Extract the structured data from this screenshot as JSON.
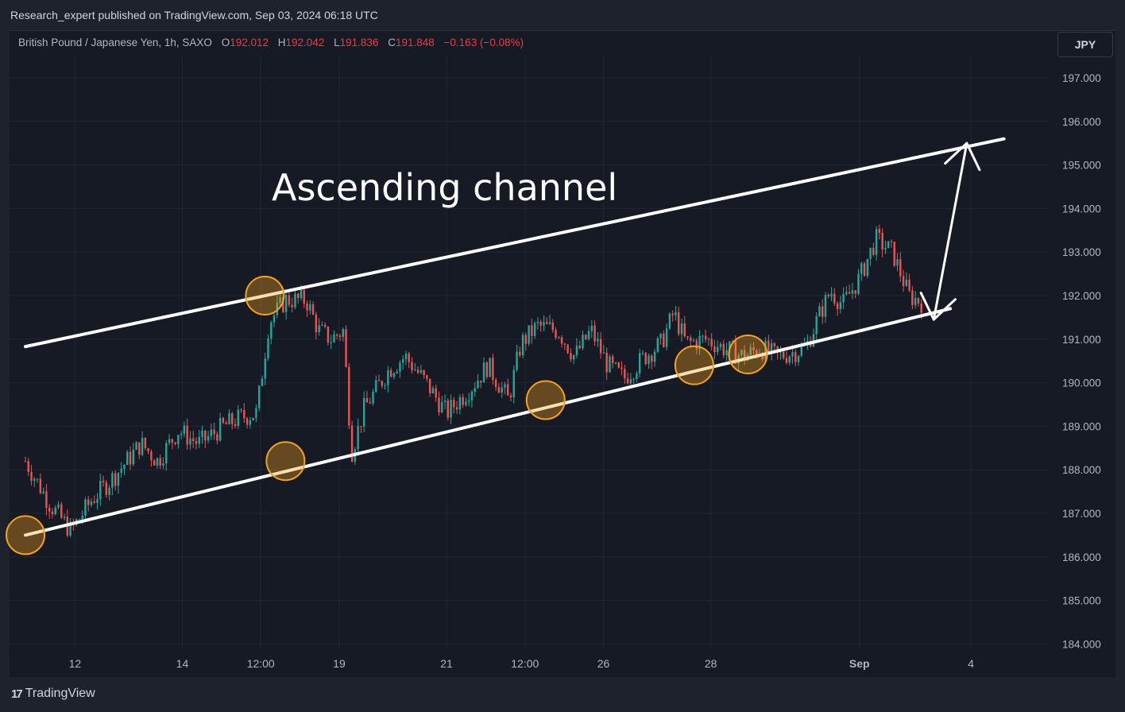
{
  "header": {
    "publish_line": "Research_expert published on TradingView.com, Sep 03, 2024 06:18 UTC"
  },
  "legend": {
    "symbol": "British Pound / Japanese Yen, 1h, SAXO",
    "open_label": "O",
    "open": "192.012",
    "high_label": "H",
    "high": "192.042",
    "low_label": "L",
    "low": "191.836",
    "close_label": "C",
    "close": "191.848",
    "change": "−0.163 (−0.08%)"
  },
  "currency_button": "JPY",
  "footer": {
    "brand": "TradingView",
    "brand_mark": "17"
  },
  "colors": {
    "up": "#26a69a",
    "down": "#ef5350",
    "annotation": "#ffffff",
    "touch_marker": "#f7a21b",
    "text": "#d1d4dc",
    "background": "#161a25"
  },
  "chart_data": {
    "type": "candlestick",
    "instrument": "British Pound / Japanese Yen",
    "timeframe": "1h",
    "source": "SAXO",
    "ylim": [
      183.8,
      197.6
    ],
    "y_ticks": [
      "197.000",
      "196.000",
      "195.000",
      "194.000",
      "193.000",
      "192.000",
      "191.000",
      "190.000",
      "189.000",
      "188.000",
      "187.000",
      "186.000",
      "185.000",
      "184.000"
    ],
    "x_ticks": [
      {
        "label": "12",
        "x": 0.6
      },
      {
        "label": "14",
        "x": 1.9
      },
      {
        "label": "12:00",
        "x": 2.85
      },
      {
        "label": "19",
        "x": 3.8
      },
      {
        "label": "21",
        "x": 5.1
      },
      {
        "label": "12:00",
        "x": 6.05
      },
      {
        "label": "26",
        "x": 7.0
      },
      {
        "label": "28",
        "x": 8.3
      },
      {
        "label": "Sep",
        "x": 10.1
      },
      {
        "label": "4",
        "x": 11.45
      }
    ],
    "x_range": [
      0,
      12.2
    ],
    "series": [
      {
        "name": "GBPJPY hourly close (approx.)",
        "points": [
          [
            0.0,
            188.2
          ],
          [
            0.3,
            187.2
          ],
          [
            0.55,
            186.6
          ],
          [
            0.8,
            187.3
          ],
          [
            1.1,
            187.9
          ],
          [
            1.4,
            188.6
          ],
          [
            1.6,
            188.2
          ],
          [
            1.85,
            188.9
          ],
          [
            2.1,
            188.6
          ],
          [
            2.4,
            189.0
          ],
          [
            2.6,
            189.2
          ],
          [
            2.8,
            189.3
          ],
          [
            2.95,
            191.4
          ],
          [
            3.15,
            191.9
          ],
          [
            3.4,
            191.9
          ],
          [
            3.55,
            191.2
          ],
          [
            3.7,
            191.0
          ],
          [
            3.85,
            191.2
          ],
          [
            3.95,
            188.4
          ],
          [
            4.1,
            189.4
          ],
          [
            4.4,
            190.3
          ],
          [
            4.6,
            190.6
          ],
          [
            4.85,
            190.0
          ],
          [
            5.1,
            189.3
          ],
          [
            5.4,
            189.9
          ],
          [
            5.6,
            190.4
          ],
          [
            5.85,
            189.6
          ],
          [
            6.0,
            190.9
          ],
          [
            6.2,
            191.3
          ],
          [
            6.45,
            191.2
          ],
          [
            6.65,
            190.6
          ],
          [
            6.85,
            191.2
          ],
          [
            7.05,
            190.4
          ],
          [
            7.25,
            190.1
          ],
          [
            7.5,
            190.6
          ],
          [
            7.7,
            190.9
          ],
          [
            7.85,
            191.6
          ],
          [
            8.0,
            190.9
          ],
          [
            8.25,
            191.0
          ],
          [
            8.45,
            190.8
          ],
          [
            8.7,
            190.6
          ],
          [
            8.9,
            190.8
          ],
          [
            9.1,
            190.6
          ],
          [
            9.3,
            190.7
          ],
          [
            9.45,
            190.8
          ],
          [
            9.6,
            191.5
          ],
          [
            9.75,
            192.1
          ],
          [
            9.9,
            191.8
          ],
          [
            10.1,
            192.4
          ],
          [
            10.3,
            193.3
          ],
          [
            10.5,
            193.0
          ],
          [
            10.7,
            192.0
          ],
          [
            10.85,
            191.85
          ]
        ]
      }
    ],
    "annotations": {
      "title": "Ascending channel",
      "channel_upper": [
        [
          0.0,
          190.83
        ],
        [
          11.85,
          195.6
        ]
      ],
      "channel_lower": [
        [
          0.0,
          186.5
        ],
        [
          11.2,
          191.7
        ]
      ],
      "target_arrow": [
        [
          11.0,
          191.45
        ],
        [
          11.4,
          195.5
        ]
      ],
      "touch_points": [
        [
          0.0,
          186.5
        ],
        [
          2.9,
          192.0
        ],
        [
          3.15,
          188.2
        ],
        [
          6.3,
          189.6
        ],
        [
          8.1,
          190.4
        ],
        [
          8.75,
          190.65
        ]
      ]
    }
  }
}
